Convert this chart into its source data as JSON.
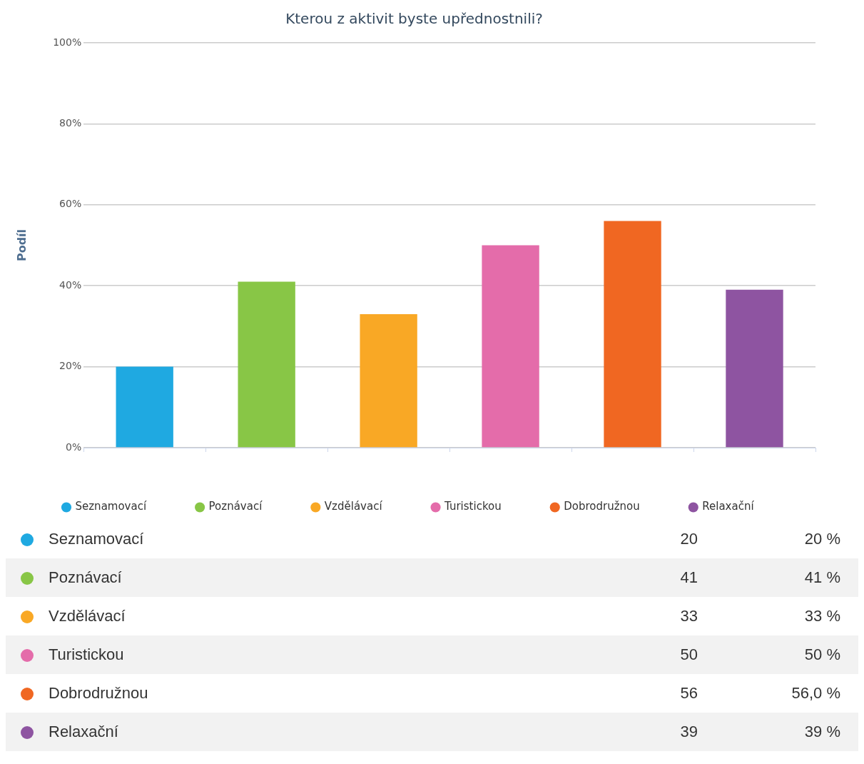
{
  "chart_data": [
    {
      "type": "bar",
      "title": "Kterou z aktivit byste upřednostnili?",
      "ylabel": "Podíl",
      "categories": [
        null,
        null,
        null,
        null,
        null,
        null
      ],
      "series": [
        {
          "name": "Seznamovací",
          "color": "#1fa9e1",
          "values": [
            20,
            null,
            null,
            null,
            null,
            null
          ]
        },
        {
          "name": "Poznávací",
          "color": "#88c646",
          "values": [
            null,
            41,
            null,
            null,
            null,
            null
          ]
        },
        {
          "name": "Vzdělávací",
          "color": "#f9a825",
          "values": [
            null,
            null,
            33,
            null,
            null,
            null
          ]
        },
        {
          "name": "Turistickou",
          "color": "#e46caa",
          "values": [
            null,
            null,
            null,
            50,
            null,
            null
          ]
        },
        {
          "name": "Dobrodružnou",
          "color": "#f06722",
          "values": [
            null,
            null,
            null,
            null,
            56,
            null
          ]
        },
        {
          "name": "Relaxační",
          "color": "#8e54a1",
          "values": [
            null,
            null,
            null,
            null,
            null,
            39
          ]
        }
      ],
      "ylim": [
        0,
        100
      ],
      "yticks": [
        {
          "value": 0,
          "label": "0%"
        },
        {
          "value": 20,
          "label": "20%"
        },
        {
          "value": 40,
          "label": "40%"
        },
        {
          "value": 60,
          "label": "60%"
        },
        {
          "value": 80,
          "label": "80%"
        },
        {
          "value": 100,
          "label": "100%"
        }
      ],
      "grid": "y",
      "legend": "bottom",
      "tick_labels": "y"
    },
    {
      "type": "other",
      "categories": [
        "Seznamovací",
        "Poznávací",
        "Vzdělávací",
        "Turistickou",
        "Dobrodružnou",
        "Relaxační"
      ],
      "series": [
        {
          "values": [
            20,
            41,
            33,
            50,
            56,
            39
          ],
          "value_labels": [
            "20",
            "41",
            "33",
            "50",
            "56",
            "39"
          ]
        },
        {
          "values": [
            20,
            41,
            33,
            50,
            56,
            39
          ],
          "value_labels": [
            "20 %",
            "41 %",
            "33 %",
            "50 %",
            "56,0 %",
            "39 %"
          ]
        }
      ],
      "colors": [
        "#1fa9e1",
        "#88c646",
        "#f9a825",
        "#e46caa",
        "#f06722",
        "#8e54a1"
      ]
    }
  ]
}
